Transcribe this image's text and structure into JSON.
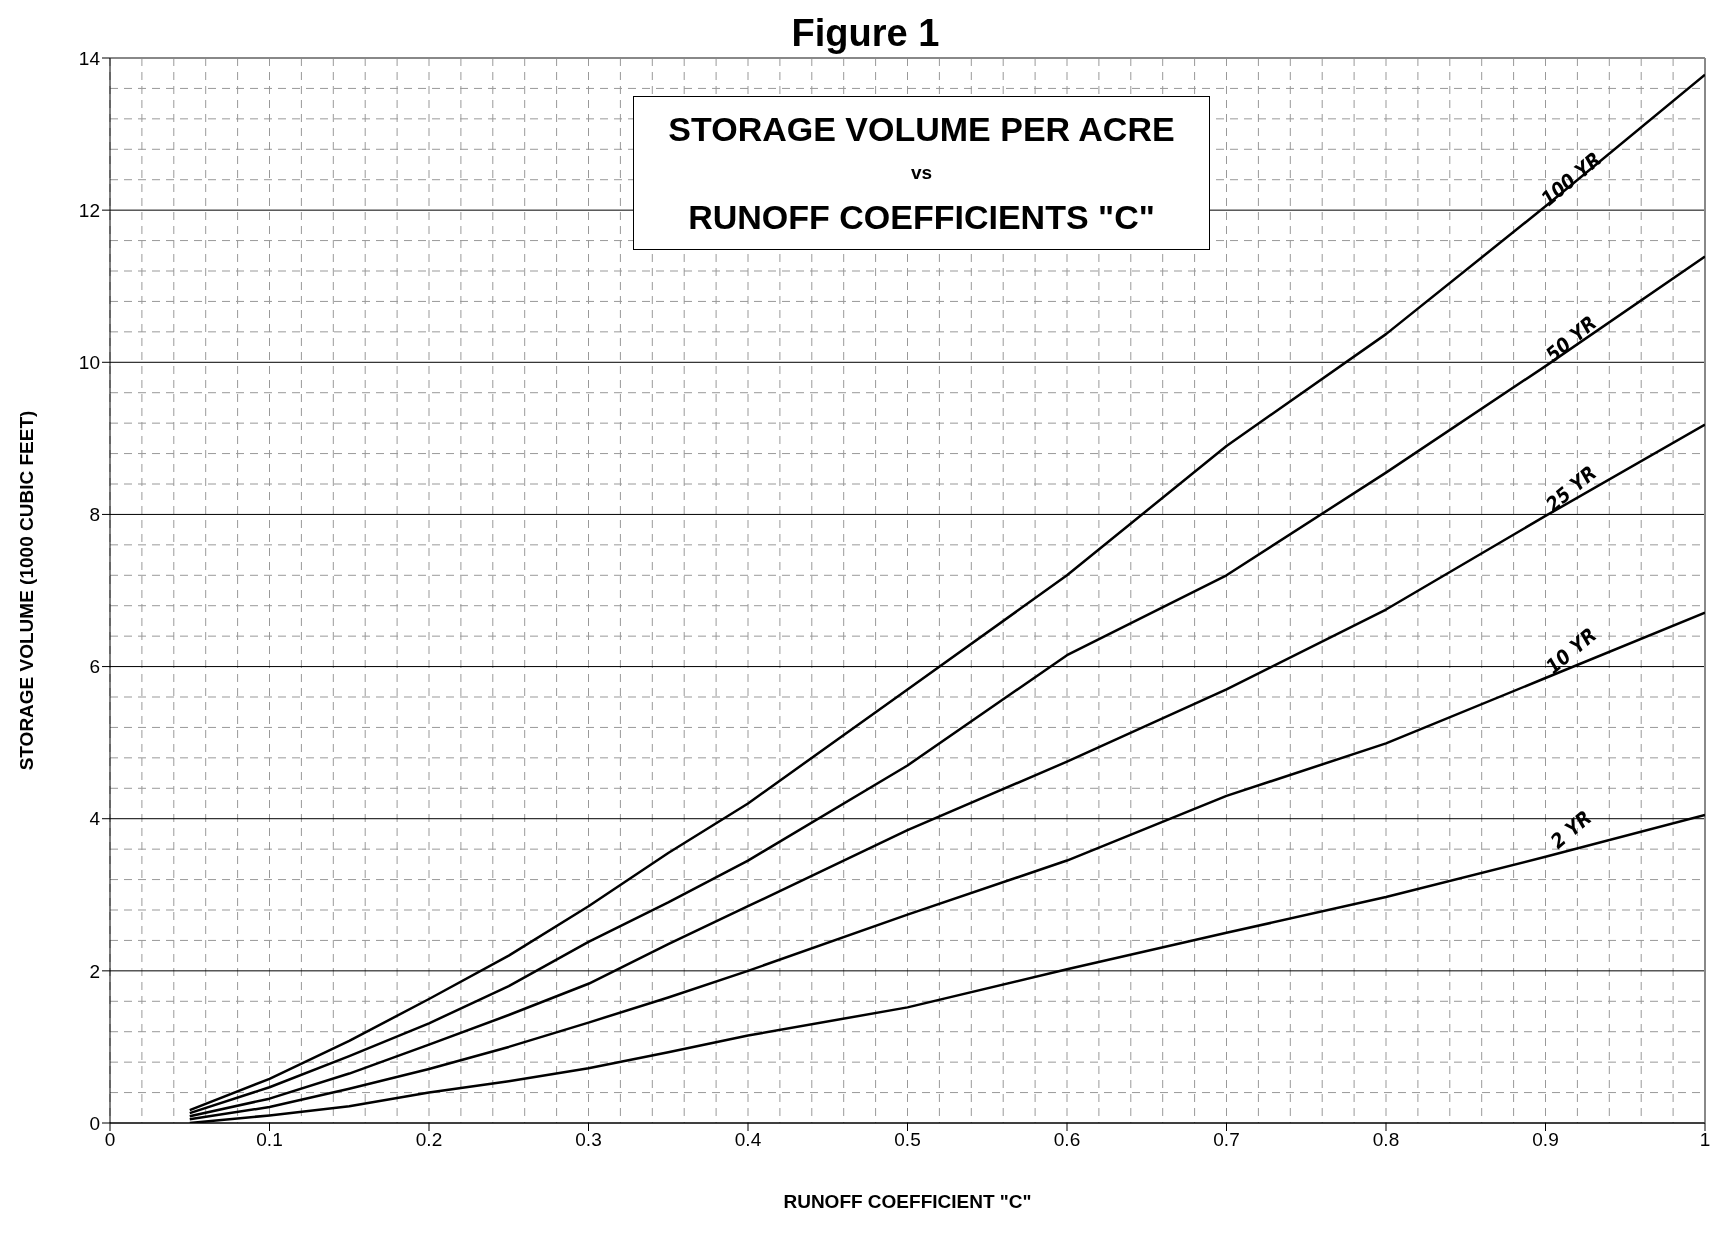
{
  "chart_data": {
    "type": "line",
    "title": "Figure 1",
    "xlabel": "RUNOFF COEFFICIENT \"C\"",
    "ylabel": "STORAGE VOLUME (1000 CUBIC FEET)",
    "annotations": [
      "STORAGE VOLUME PER ACRE",
      "vs",
      "RUNOFF COEFFICIENTS \"C\""
    ],
    "x": [
      0.05,
      0.1,
      0.15,
      0.2,
      0.25,
      0.3,
      0.35,
      0.4,
      0.5,
      0.6,
      0.7,
      0.8,
      0.9,
      1.0
    ],
    "series": [
      {
        "name": "100 YR",
        "color": "#000000",
        "values": [
          0.17,
          0.58,
          1.08,
          1.63,
          2.2,
          2.85,
          3.55,
          4.2,
          5.7,
          7.2,
          8.9,
          10.37,
          12.05,
          13.78
        ]
      },
      {
        "name": "50 YR",
        "color": "#000000",
        "values": [
          0.13,
          0.47,
          0.88,
          1.31,
          1.8,
          2.38,
          2.9,
          3.45,
          4.7,
          6.15,
          7.2,
          8.55,
          9.95,
          11.39
        ]
      },
      {
        "name": "25 YR",
        "color": "#000000",
        "values": [
          0.09,
          0.32,
          0.65,
          1.03,
          1.42,
          1.83,
          2.35,
          2.85,
          3.85,
          4.75,
          5.7,
          6.75,
          7.98,
          9.18
        ]
      },
      {
        "name": "10 YR",
        "color": "#000000",
        "values": [
          0.05,
          0.21,
          0.45,
          0.71,
          1.0,
          1.32,
          1.65,
          2.0,
          2.74,
          3.45,
          4.3,
          4.99,
          5.85,
          6.71
        ]
      },
      {
        "name": "2 YR",
        "color": "#000000",
        "values": [
          0.0,
          0.1,
          0.22,
          0.4,
          0.55,
          0.72,
          0.93,
          1.15,
          1.52,
          2.02,
          2.5,
          2.97,
          3.5,
          4.05
        ]
      }
    ],
    "xlim": [
      0,
      1
    ],
    "xticks": [
      0,
      0.1,
      0.2,
      0.3,
      0.4,
      0.5,
      0.6,
      0.7,
      0.8,
      0.9,
      1
    ],
    "ylim": [
      0,
      14
    ],
    "yticks": [
      0,
      2,
      4,
      6,
      8,
      10,
      12,
      14
    ],
    "grid": true,
    "marker": "none",
    "line_style": "solid"
  }
}
